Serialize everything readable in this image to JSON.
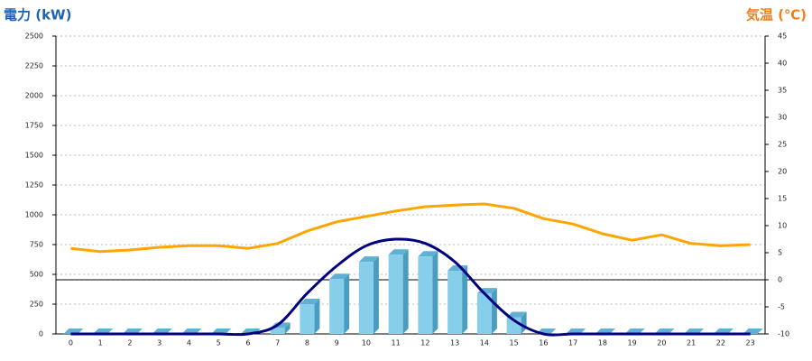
{
  "chart_data": {
    "type": "combo",
    "y_title": "電力 (kW)",
    "y2_title": "気温 (℃)",
    "categories": [
      "0",
      "1",
      "2",
      "3",
      "4",
      "5",
      "6",
      "7",
      "8",
      "9",
      "10",
      "11",
      "12",
      "13",
      "14",
      "15",
      "16",
      "17",
      "18",
      "19",
      "20",
      "21",
      "22",
      "23"
    ],
    "series": [
      {
        "type": "bar",
        "color": "#87ceeb",
        "values": [
          0,
          0,
          0,
          0,
          0,
          0,
          0,
          50,
          250,
          460,
          605,
          665,
          650,
          530,
          340,
          140,
          0,
          0,
          0,
          0,
          0,
          0,
          0,
          0
        ]
      },
      {
        "type": "line",
        "color": "#000080",
        "values": [
          0,
          0,
          0,
          0,
          0,
          0,
          0,
          75,
          340,
          570,
          740,
          795,
          760,
          605,
          340,
          115,
          0,
          0,
          0,
          0,
          0,
          0,
          0,
          0
        ]
      },
      {
        "type": "line",
        "axis": "y2",
        "color": "#ffa500",
        "values": [
          5.8,
          5.2,
          5.5,
          6,
          6.3,
          6.3,
          5.8,
          6.7,
          9,
          10.7,
          11.7,
          12.7,
          13.5,
          13.8,
          14,
          13.2,
          11.3,
          10.3,
          8.5,
          7.3,
          8.3,
          6.7,
          6.3,
          6.5
        ]
      }
    ],
    "ylim": [
      0,
      2500
    ],
    "yticks": [
      0,
      250,
      500,
      750,
      1000,
      1250,
      1500,
      1750,
      2000,
      2250,
      2500
    ],
    "y2lim": [
      -10,
      45
    ],
    "y2ticks": [
      -10,
      -5,
      0,
      5,
      10,
      15,
      20,
      25,
      30,
      35,
      40,
      45
    ],
    "grid": true
  }
}
